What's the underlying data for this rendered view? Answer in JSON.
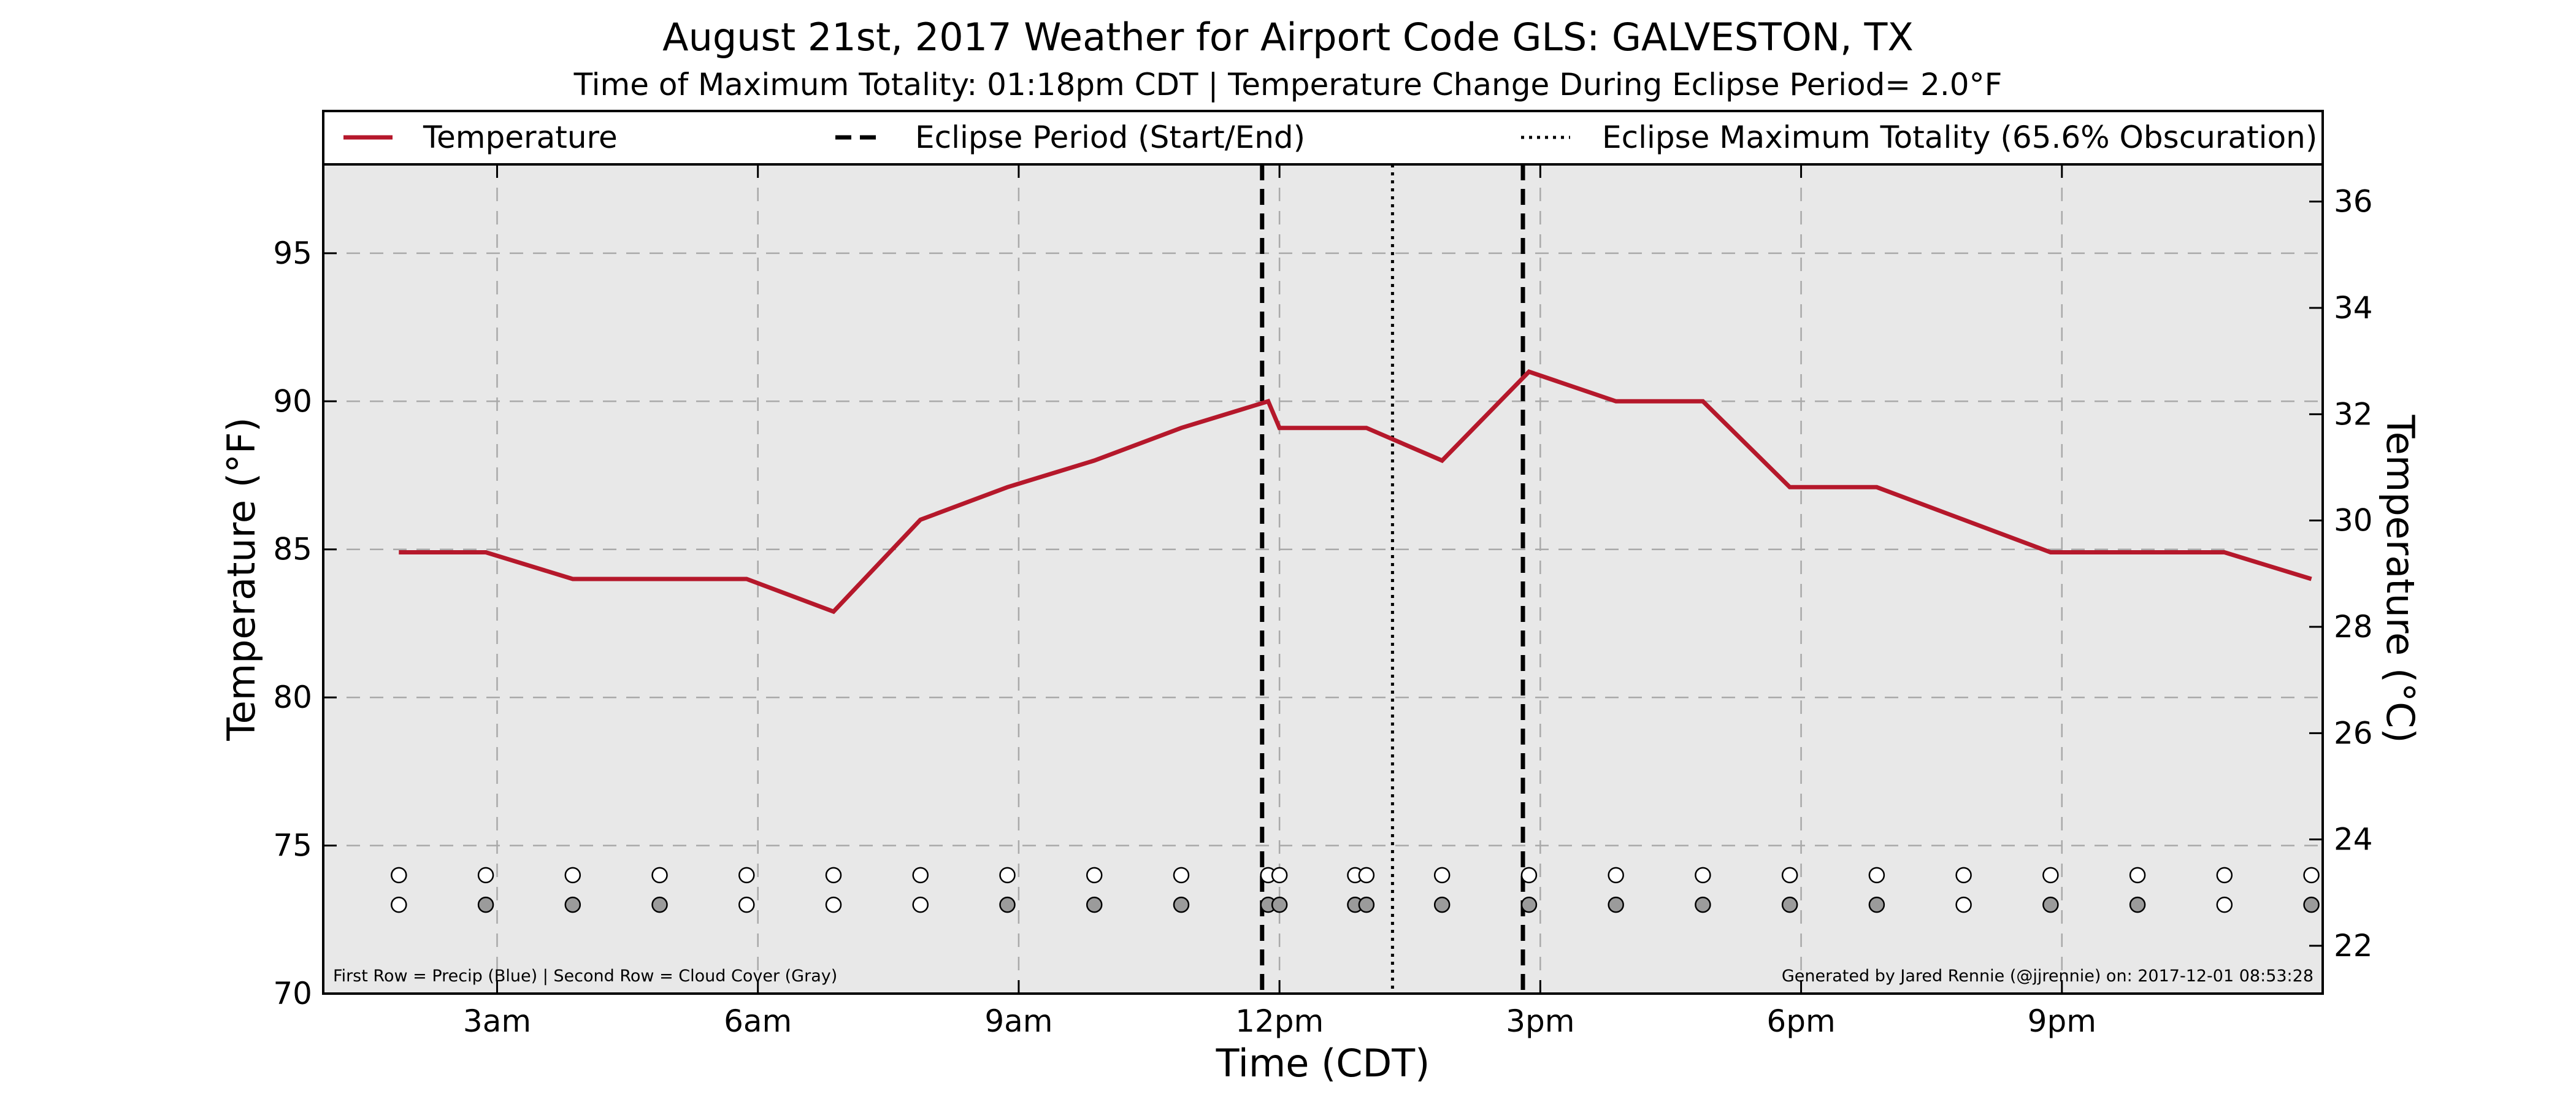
{
  "chart_data": {
    "type": "line",
    "title": "August 21st, 2017 Weather for Airport Code GLS: GALVESTON, TX",
    "subtitle": "Time of Maximum Totality: 01:18pm CDT | Temperature Change During Eclipse Period= 2.0°F",
    "xlabel": "Time (CDT)",
    "ylabel": "Temperature (°F)",
    "ylabel_right": "Temperature (°C)",
    "xlim": [
      1.0,
      24.0
    ],
    "ylim": [
      70,
      98
    ],
    "ylim_right": [
      21.1,
      36.7
    ],
    "grid": true,
    "x_ticks": [
      {
        "x": 3,
        "label": "3am"
      },
      {
        "x": 6,
        "label": "6am"
      },
      {
        "x": 9,
        "label": "9am"
      },
      {
        "x": 12,
        "label": "12pm"
      },
      {
        "x": 15,
        "label": "3pm"
      },
      {
        "x": 18,
        "label": "6pm"
      },
      {
        "x": 21,
        "label": "9pm"
      }
    ],
    "y_ticks_left": [
      70,
      75,
      80,
      85,
      90,
      95
    ],
    "y_ticks_right": [
      22,
      24,
      26,
      28,
      30,
      32,
      34,
      36
    ],
    "legend": {
      "placement": "top",
      "entries": [
        {
          "label": "Temperature",
          "style": "solid",
          "color": "#b5182b"
        },
        {
          "label": "Eclipse Period (Start/End)",
          "style": "dashed",
          "color": "#000000"
        },
        {
          "label": "Eclipse Maximum Totality (65.6% Obscuration)",
          "style": "dotted",
          "color": "#000000"
        }
      ]
    },
    "series": [
      {
        "name": "Temperature",
        "color": "#b5182b",
        "x": [
          1.87,
          2.87,
          3.87,
          4.87,
          5.87,
          6.87,
          7.87,
          8.87,
          9.87,
          10.87,
          11.87,
          12.0,
          13.0,
          13.87,
          14.87,
          15.87,
          16.87,
          17.87,
          18.87,
          19.87,
          20.87,
          21.87,
          22.87,
          23.87
        ],
        "y": [
          84.9,
          84.9,
          84.0,
          84.0,
          84.0,
          82.9,
          86.0,
          87.1,
          88.0,
          89.1,
          90.0,
          89.1,
          89.1,
          88.0,
          91.0,
          90.0,
          90.0,
          87.1,
          87.1,
          86.0,
          84.9,
          84.9,
          84.9,
          84.0
        ]
      }
    ],
    "eclipse_period": {
      "start": 11.8,
      "end": 14.8
    },
    "max_totality": 13.3,
    "precip_cloud_rows": {
      "precip_row_y": 74,
      "cloud_row_y": 73,
      "points": [
        {
          "x": 1.87,
          "precip": "none",
          "cloud": "clear"
        },
        {
          "x": 2.87,
          "precip": "none",
          "cloud": "cloudy"
        },
        {
          "x": 3.87,
          "precip": "none",
          "cloud": "cloudy"
        },
        {
          "x": 4.87,
          "precip": "none",
          "cloud": "cloudy"
        },
        {
          "x": 5.87,
          "precip": "none",
          "cloud": "clear"
        },
        {
          "x": 6.87,
          "precip": "none",
          "cloud": "clear"
        },
        {
          "x": 7.87,
          "precip": "none",
          "cloud": "clear"
        },
        {
          "x": 8.87,
          "precip": "none",
          "cloud": "cloudy"
        },
        {
          "x": 9.87,
          "precip": "none",
          "cloud": "cloudy"
        },
        {
          "x": 10.87,
          "precip": "none",
          "cloud": "cloudy"
        },
        {
          "x": 11.87,
          "precip": "none",
          "cloud": "cloudy"
        },
        {
          "x": 12.0,
          "precip": "none",
          "cloud": "cloudy"
        },
        {
          "x": 12.87,
          "precip": "none",
          "cloud": "cloudy"
        },
        {
          "x": 13.0,
          "precip": "none",
          "cloud": "cloudy"
        },
        {
          "x": 13.87,
          "precip": "none",
          "cloud": "cloudy"
        },
        {
          "x": 14.87,
          "precip": "none",
          "cloud": "cloudy"
        },
        {
          "x": 15.87,
          "precip": "none",
          "cloud": "cloudy"
        },
        {
          "x": 16.87,
          "precip": "none",
          "cloud": "cloudy"
        },
        {
          "x": 17.87,
          "precip": "none",
          "cloud": "cloudy"
        },
        {
          "x": 18.87,
          "precip": "none",
          "cloud": "cloudy"
        },
        {
          "x": 19.87,
          "precip": "none",
          "cloud": "clear"
        },
        {
          "x": 20.87,
          "precip": "none",
          "cloud": "cloudy"
        },
        {
          "x": 21.87,
          "precip": "none",
          "cloud": "cloudy"
        },
        {
          "x": 22.87,
          "precip": "none",
          "cloud": "clear"
        },
        {
          "x": 23.87,
          "precip": "none",
          "cloud": "cloudy"
        }
      ]
    },
    "annotations": {
      "bottom_left": "First Row = Precip (Blue) | Second Row = Cloud Cover (Gray)",
      "bottom_right": "Generated by Jared Rennie (@jjrennie) on: 2017-12-01 08:53:28"
    }
  },
  "colors": {
    "plot_background": "#e8e8e8",
    "grid": "#a9a9a9",
    "temperature": "#b5182b",
    "cloud_fill": "#9b9b9b",
    "clear_fill": "#ffffff"
  }
}
